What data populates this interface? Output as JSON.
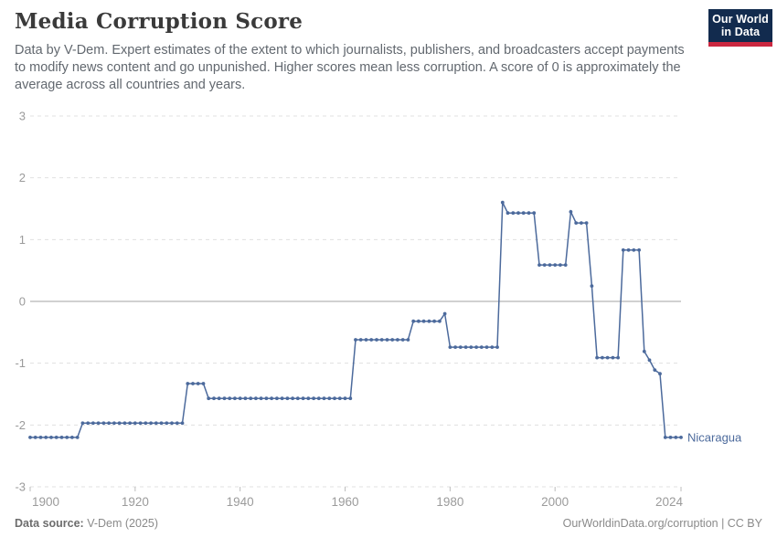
{
  "header": {
    "title": "Media Corruption Score",
    "subtitle": "Data by V-Dem. Expert estimates of the extent to which journalists, publishers, and broadcasters accept payments to modify news content and go unpunished. Higher scores mean less corruption. A score of 0 is approximately the average across all countries and years.",
    "logo": {
      "line1": "Our World",
      "line2": "in Data"
    }
  },
  "footer": {
    "source_label": "Data source:",
    "source_value": " V-Dem (2025)",
    "link": "OurWorldinData.org/corruption | CC BY"
  },
  "colors": {
    "line": "#4c6a9c",
    "grid": "#e0e0e0",
    "zero_line": "#a3a3a3",
    "tick": "#bdbdbd",
    "axis_text": "#9b9b9b",
    "logo_bg": "#122b4e",
    "logo_red": "#cb2740"
  },
  "chart_data": {
    "type": "line",
    "title": "Media Corruption Score",
    "xlabel": "",
    "ylabel": "",
    "xlim": [
      1900,
      2024
    ],
    "ylim": [
      -3,
      3
    ],
    "x_ticks": [
      1900,
      1920,
      1940,
      1960,
      1980,
      2000,
      2024
    ],
    "y_ticks": [
      3,
      2,
      1,
      0,
      -1,
      -2,
      -3
    ],
    "grid": "horizontal-dashed, zero-line-solid",
    "legend_position": "end-of-line-label",
    "series": [
      {
        "name": "Nicaragua",
        "runs_year_from_to_value": [
          [
            1900,
            1909,
            -2.2
          ],
          [
            1910,
            1929,
            -1.97
          ],
          [
            1930,
            1933,
            -1.33
          ],
          [
            1934,
            1961,
            -1.57
          ],
          [
            1962,
            1972,
            -0.62
          ],
          [
            1973,
            1978,
            -0.32
          ],
          [
            1979,
            1979,
            -0.2
          ],
          [
            1980,
            1989,
            -0.74
          ],
          [
            1990,
            1990,
            1.6
          ],
          [
            1991,
            1996,
            1.43
          ],
          [
            1997,
            2002,
            0.59
          ],
          [
            2003,
            2003,
            1.45
          ],
          [
            2004,
            2006,
            1.27
          ],
          [
            2007,
            2007,
            0.25
          ],
          [
            2008,
            2012,
            -0.91
          ],
          [
            2013,
            2016,
            0.83
          ],
          [
            2017,
            2017,
            -0.81
          ],
          [
            2018,
            2018,
            -0.95
          ],
          [
            2019,
            2019,
            -1.11
          ],
          [
            2020,
            2020,
            -1.17
          ],
          [
            2021,
            2024,
            -2.2
          ]
        ]
      }
    ]
  }
}
